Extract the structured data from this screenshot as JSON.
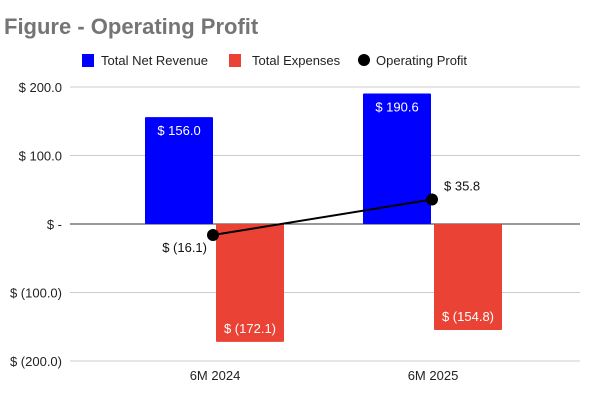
{
  "chart_data": {
    "type": "bar",
    "title": "Figure - Operating Profit",
    "categories": [
      "6M 2024",
      "6M 2025"
    ],
    "series": [
      {
        "name": "Total Net Revenue",
        "kind": "bar",
        "color": "#0000ff",
        "values": [
          156.0,
          190.6
        ],
        "labels": [
          "$ 156.0",
          "$ 190.6"
        ]
      },
      {
        "name": "Total Expenses",
        "kind": "bar",
        "color": "#ea4335",
        "values": [
          -172.1,
          -154.8
        ],
        "labels": [
          "$ (172.1)",
          "$ (154.8)"
        ]
      },
      {
        "name": "Operating Profit",
        "kind": "line",
        "color": "#000000",
        "values": [
          -16.1,
          35.8
        ],
        "labels": [
          "$ (16.1)",
          "$ 35.8"
        ]
      }
    ],
    "ylim": [
      -200,
      200
    ],
    "yticks": [
      200,
      100,
      0,
      -100,
      -200
    ],
    "ytick_labels": [
      "$ 200.0",
      "$ 100.0",
      "$ -",
      "$ (100.0)",
      "$ (200.0)"
    ],
    "grid": true,
    "legend": "top",
    "xlabel": "",
    "ylabel": ""
  }
}
